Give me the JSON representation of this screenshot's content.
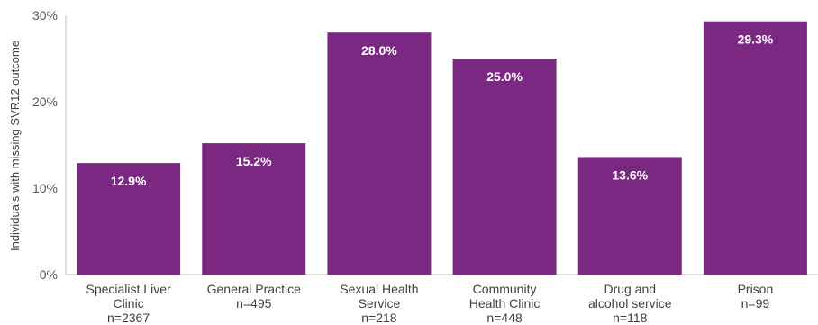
{
  "chart_data": {
    "type": "bar",
    "title": "",
    "xlabel": "",
    "ylabel": "Individuals with missing SVR12 outcome",
    "ylim": [
      0,
      30
    ],
    "yticks": [
      "0%",
      "10%",
      "20%",
      "30%"
    ],
    "grid": false,
    "legend": "none",
    "bar_color": "#7B2883",
    "categories": [
      [
        "Specialist Liver",
        "Clinic",
        "n=2367"
      ],
      [
        "General Practice",
        "n=495"
      ],
      [
        "Sexual Health",
        "Service",
        "n=218"
      ],
      [
        "Community",
        "Health Clinic",
        "n=448"
      ],
      [
        "Drug and",
        "alcohol service",
        "n=118"
      ],
      [
        "Prison",
        "n=99"
      ]
    ],
    "values": [
      12.9,
      15.2,
      28.0,
      25.0,
      13.6,
      29.3
    ],
    "data_labels": [
      "12.9%",
      "15.2%",
      "28.0%",
      "25.0%",
      "13.6%",
      "29.3%"
    ]
  }
}
